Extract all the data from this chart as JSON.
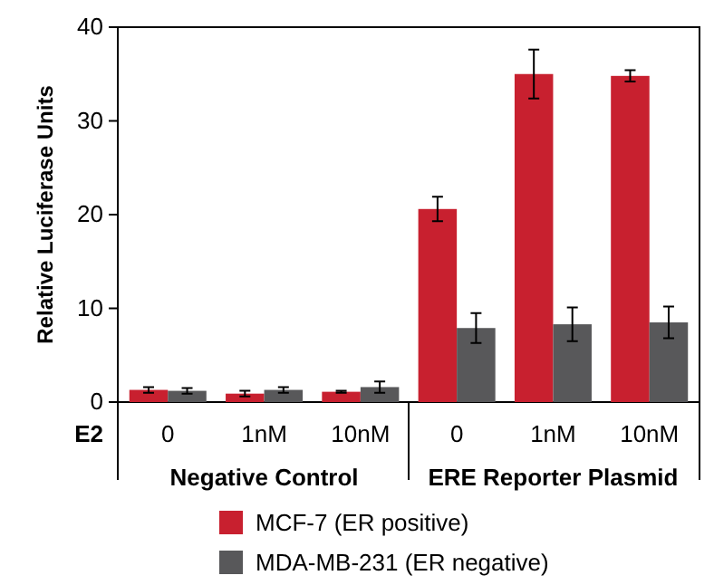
{
  "chart_data": {
    "type": "bar",
    "ylabel": "Relative Luciferase Units",
    "xlabel": "E2",
    "categories": [
      "0",
      "1nM",
      "10nM",
      "0",
      "1nM",
      "10nM"
    ],
    "series": [
      {
        "name": "MCF-7 (ER positive)",
        "color": "#c8202f",
        "values": [
          1.3,
          0.9,
          1.1,
          20.6,
          35.0,
          34.8
        ],
        "errors": [
          0.3,
          0.3,
          0.1,
          1.3,
          2.6,
          0.6
        ]
      },
      {
        "name": "MDA-MB-231 (ER negative)",
        "color": "#58585a",
        "values": [
          1.2,
          1.3,
          1.6,
          7.9,
          8.3,
          8.5
        ],
        "errors": [
          0.3,
          0.3,
          0.6,
          1.6,
          1.8,
          1.7
        ]
      }
    ],
    "annotations": [
      "Negative Control",
      "ERE Reporter Plasmid"
    ],
    "ylim": [
      0,
      40
    ],
    "yticks": [
      0,
      10,
      20,
      30,
      40
    ],
    "legend": "bottom",
    "grid": false
  }
}
